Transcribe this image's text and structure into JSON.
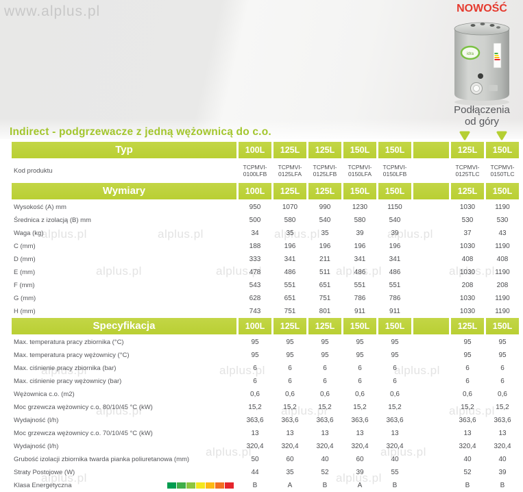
{
  "page": {
    "top_watermark": "www.alplus.pl",
    "watermark": "alplus.pl",
    "badge": "NOWOŚĆ",
    "connection_note_line1": "Podłączenia",
    "connection_note_line2": "od góry",
    "title": "Indirect - podgrzewacze z jedną wężownicą do c.o."
  },
  "table": {
    "type_header": "Typ",
    "columns": [
      "100L",
      "125L",
      "125L",
      "150L",
      "150L",
      "",
      "125L",
      "150L"
    ],
    "product_code_row": {
      "label": "Kod produktu",
      "values": [
        "TCPMVI-0100LFB",
        "TCPMVI-0125LFA",
        "TCPMVI-0125LFB",
        "TCPMVI-0150LFA",
        "TCPMVI-0150LFB",
        "",
        "TCPMVI-0125TLC",
        "TCPMVI-0150TLC"
      ]
    },
    "sections": [
      {
        "title": "Wymiary",
        "rows": [
          {
            "label": "Wysokość (A) mm",
            "values": [
              "950",
              "1070",
              "990",
              "1230",
              "1150",
              "",
              "1030",
              "1190"
            ]
          },
          {
            "label": "Średnica z izolacją (B) mm",
            "values": [
              "500",
              "580",
              "540",
              "580",
              "540",
              "",
              "530",
              "530"
            ]
          },
          {
            "label": "Waga (kg)",
            "values": [
              "34",
              "35",
              "35",
              "39",
              "39",
              "",
              "37",
              "43"
            ]
          },
          {
            "label": "C (mm)",
            "values": [
              "188",
              "196",
              "196",
              "196",
              "196",
              "",
              "1030",
              "1190"
            ]
          },
          {
            "label": "D (mm)",
            "values": [
              "333",
              "341",
              "211",
              "341",
              "341",
              "",
              "408",
              "408"
            ]
          },
          {
            "label": "E (mm)",
            "values": [
              "478",
              "486",
              "511",
              "486",
              "486",
              "",
              "1030",
              "1190"
            ]
          },
          {
            "label": "F (mm)",
            "values": [
              "543",
              "551",
              "651",
              "551",
              "551",
              "",
              "208",
              "208"
            ]
          },
          {
            "label": "G (mm)",
            "values": [
              "628",
              "651",
              "751",
              "786",
              "786",
              "",
              "1030",
              "1190"
            ]
          },
          {
            "label": "H (mm)",
            "values": [
              "743",
              "751",
              "801",
              "911",
              "911",
              "",
              "1030",
              "1190"
            ]
          }
        ]
      },
      {
        "title": "Specyfikacja",
        "rows": [
          {
            "label": "Max. temperatura pracy zbiornika (°C)",
            "values": [
              "95",
              "95",
              "95",
              "95",
              "95",
              "",
              "95",
              "95"
            ]
          },
          {
            "label": "Max. temperatura pracy wężownicy (°C)",
            "values": [
              "95",
              "95",
              "95",
              "95",
              "95",
              "",
              "95",
              "95"
            ]
          },
          {
            "label": "Max. ciśnienie pracy zbiornika (bar)",
            "values": [
              "6",
              "6",
              "6",
              "6",
              "6",
              "",
              "6",
              "6"
            ]
          },
          {
            "label": "Max. ciśnienie pracy wężownicy (bar)",
            "values": [
              "6",
              "6",
              "6",
              "6",
              "6",
              "",
              "6",
              "6"
            ]
          },
          {
            "label": "Wężownica c.o. (m2)",
            "values": [
              "0,6",
              "0,6",
              "0,6",
              "0,6",
              "0,6",
              "",
              "0,6",
              "0,6"
            ]
          },
          {
            "label": "Moc grzewcza wężownicy c.o. 80/10/45 °C (kW)",
            "values": [
              "15,2",
              "15,2",
              "15,2",
              "15,2",
              "15,2",
              "",
              "15,2",
              "15,2"
            ]
          },
          {
            "label": "Wydajność (l/h)",
            "values": [
              "363,6",
              "363,6",
              "363,6",
              "363,6",
              "363,6",
              "",
              "363,6",
              "363,6"
            ]
          },
          {
            "label": "Moc grzewcza wężownicy c.o. 70/10/45 °C (kW)",
            "values": [
              "13",
              "13",
              "13",
              "13",
              "13",
              "",
              "13",
              "13"
            ]
          },
          {
            "label": "Wydajność (l/h)",
            "values": [
              "320,4",
              "320,4",
              "320,4",
              "320,4",
              "320,4",
              "",
              "320,4",
              "320,4"
            ]
          },
          {
            "label": "Grubość izolacji zbiornika twarda pianka poliuretanowa (mm)",
            "values": [
              "50",
              "60",
              "40",
              "60",
              "40",
              "",
              "40",
              "40"
            ]
          },
          {
            "label": "Straty Postojowe (W)",
            "values": [
              "44",
              "35",
              "52",
              "39",
              "55",
              "",
              "52",
              "39"
            ]
          },
          {
            "label": "Klasa Energetyczna",
            "values": [
              "B",
              "A",
              "B",
              "A",
              "B",
              "",
              "B",
              "B"
            ],
            "energy_bar": true
          }
        ]
      }
    ],
    "energy_bar_colors": [
      "#009c4f",
      "#3fae49",
      "#8dc63f",
      "#f4e81d",
      "#fdb913",
      "#f37021",
      "#e5252c"
    ]
  },
  "colors": {
    "accent_green": "#bdd23a",
    "title_green": "#a3c62d",
    "badge_red": "#e53a2e"
  }
}
